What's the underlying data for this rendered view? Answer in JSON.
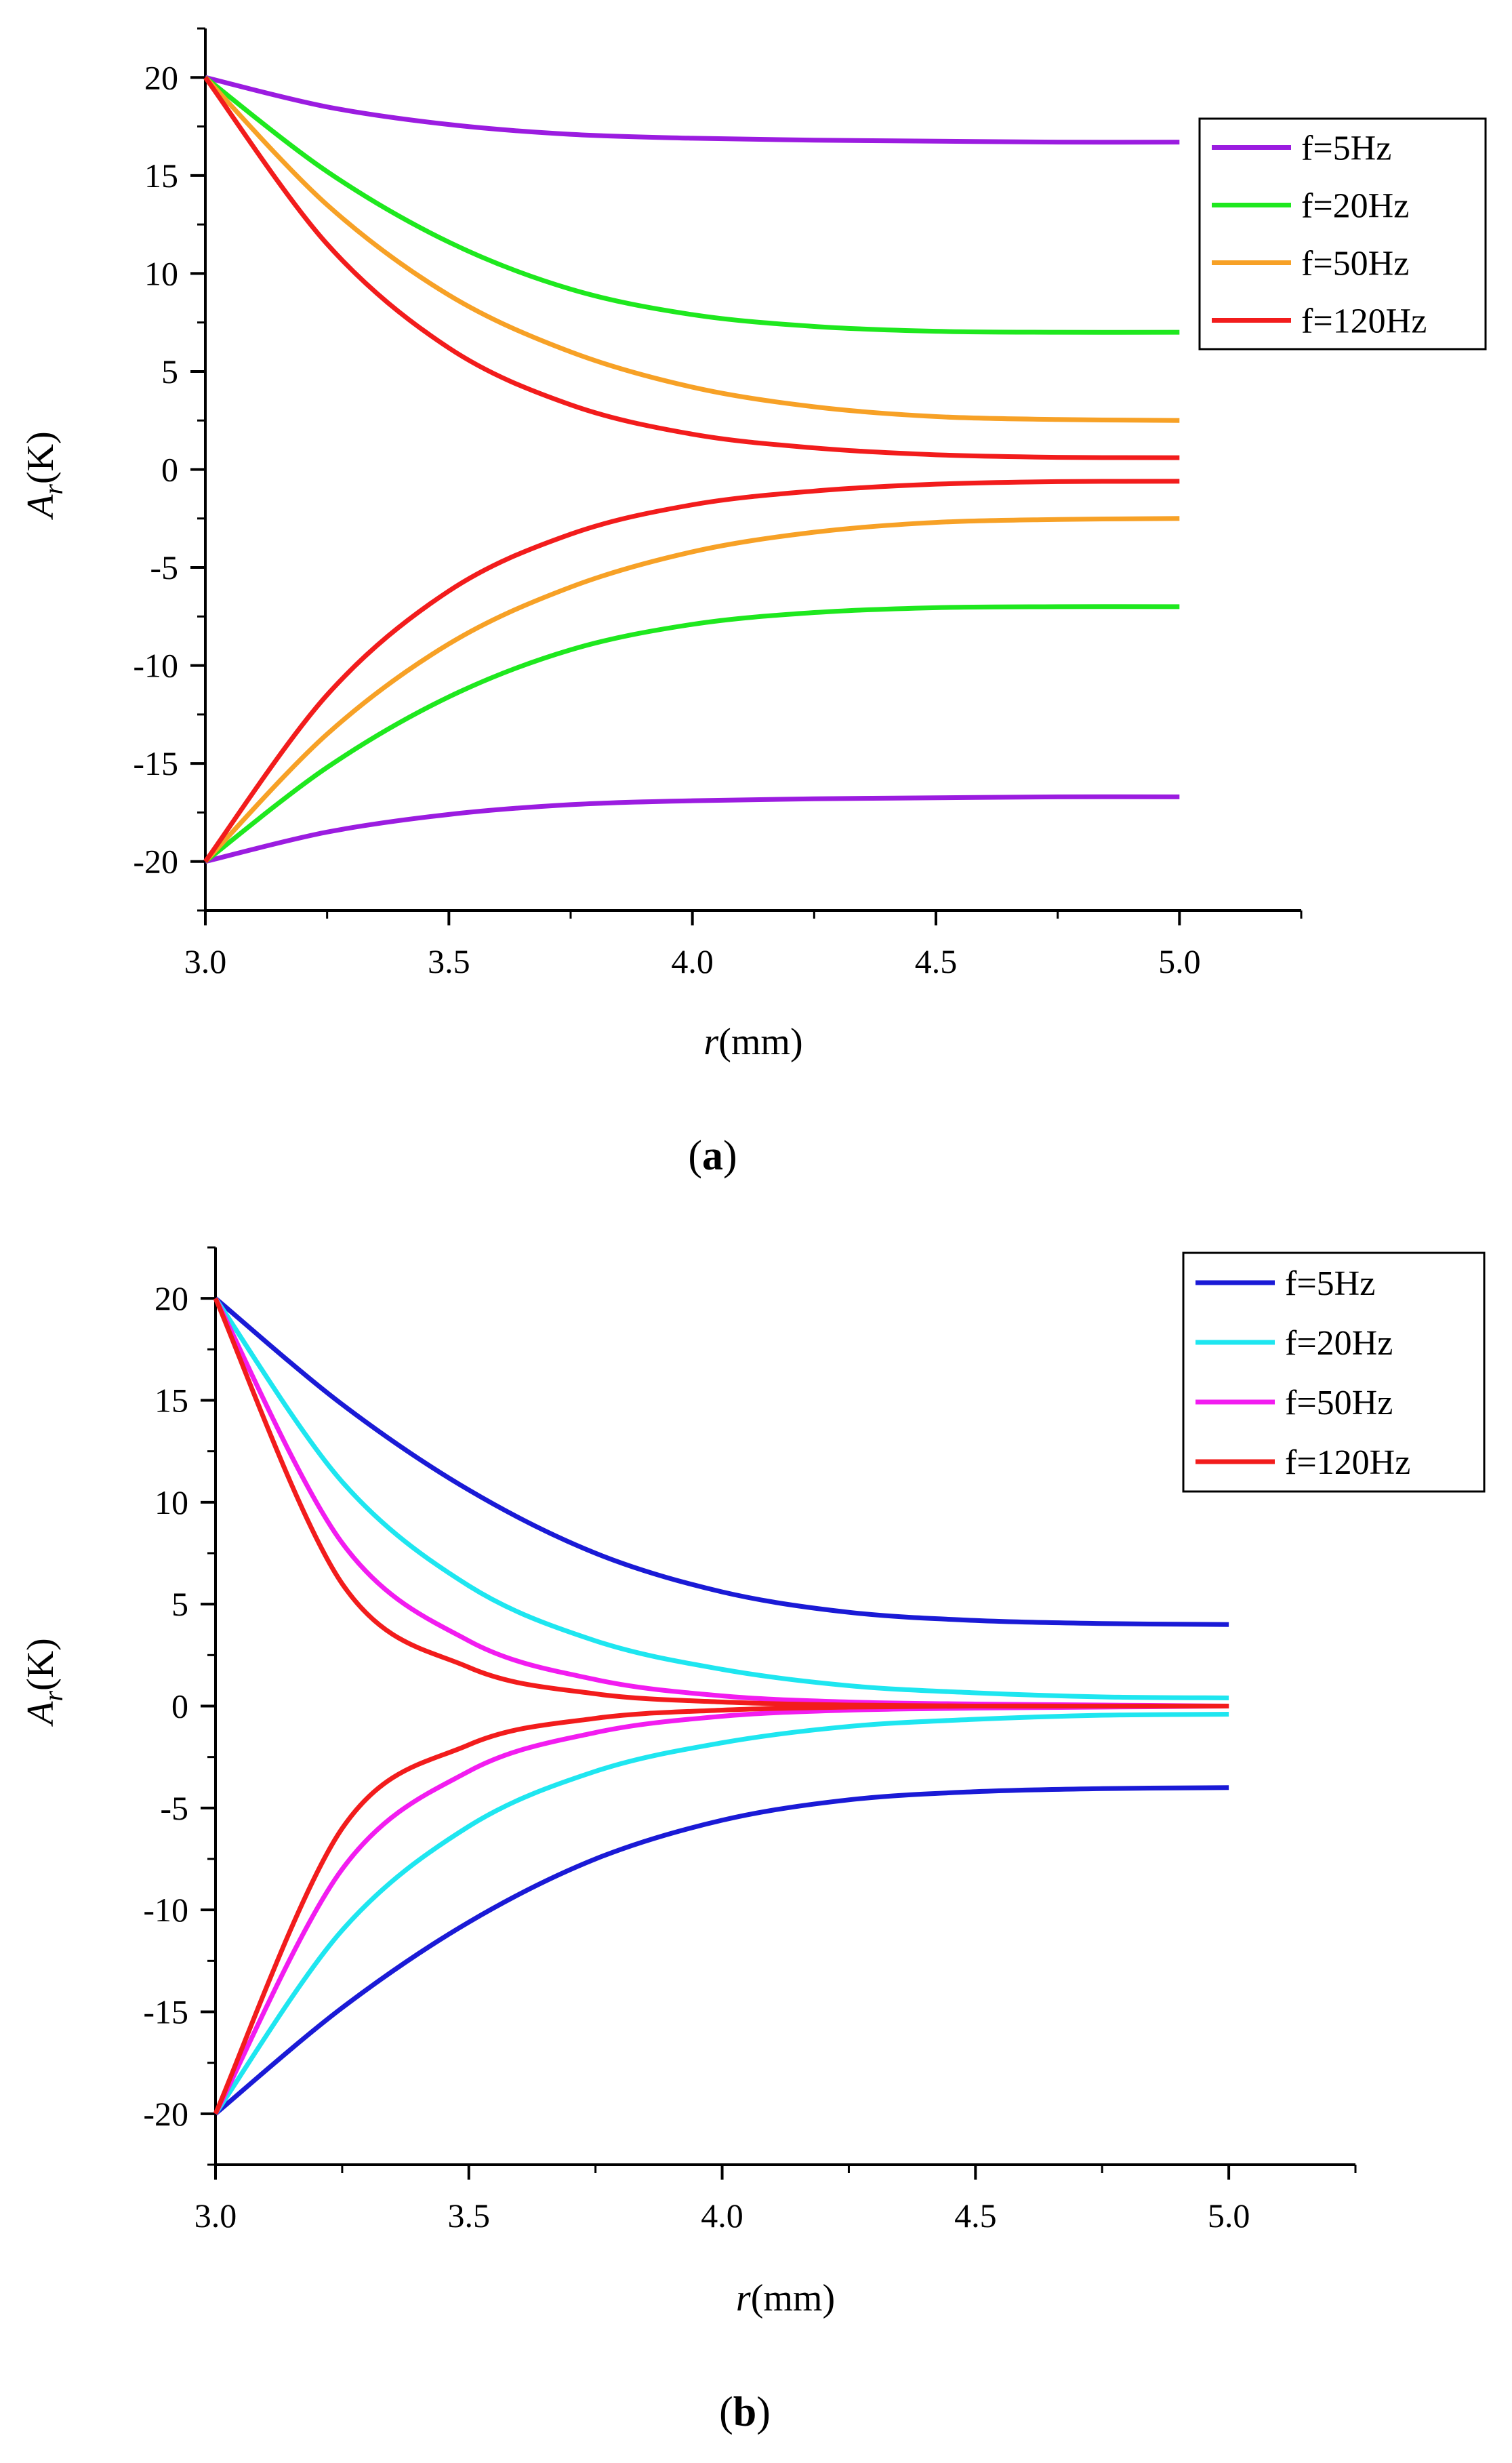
{
  "chart_data": [
    {
      "type": "line",
      "caption": "a",
      "xlabel_var": "r",
      "xlabel_unit": "(mm)",
      "ylabel_var": "A",
      "ylabel_sub": "r",
      "ylabel_unit": "(K)",
      "xlim": [
        3.0,
        5.25
      ],
      "ylim": [
        -22.5,
        22.5
      ],
      "xticks": [
        "3.0",
        "3.5",
        "4.0",
        "4.5",
        "5.0"
      ],
      "yticks": [
        "20",
        "15",
        "10",
        "5",
        "0",
        "-5",
        "-10",
        "-15",
        "-20"
      ],
      "legend_position": "top-right",
      "series": [
        {
          "name": "f=5Hz",
          "color": "#9b1ce0",
          "x": [
            3.0,
            3.25,
            3.5,
            3.75,
            4.0,
            4.25,
            4.5,
            4.75,
            5.0
          ],
          "upper": [
            20,
            18.5,
            17.6,
            17.1,
            16.9,
            16.8,
            16.75,
            16.7,
            16.7
          ],
          "lower": [
            -20,
            -18.5,
            -17.6,
            -17.1,
            -16.9,
            -16.8,
            -16.75,
            -16.7,
            -16.7
          ]
        },
        {
          "name": "f=20Hz",
          "color": "#1ee81e",
          "x": [
            3.0,
            3.25,
            3.5,
            3.75,
            4.0,
            4.25,
            4.5,
            4.75,
            5.0
          ],
          "upper": [
            20,
            15.2,
            11.6,
            9.2,
            7.9,
            7.3,
            7.05,
            7.0,
            7.0
          ],
          "lower": [
            -20,
            -15.2,
            -11.6,
            -9.2,
            -7.9,
            -7.3,
            -7.05,
            -7.0,
            -7.0
          ]
        },
        {
          "name": "f=50Hz",
          "color": "#f7a126",
          "x": [
            3.0,
            3.25,
            3.5,
            3.75,
            4.0,
            4.25,
            4.5,
            4.75,
            5.0
          ],
          "upper": [
            20,
            13.5,
            8.9,
            6.0,
            4.2,
            3.2,
            2.7,
            2.55,
            2.5
          ],
          "lower": [
            -20,
            -13.5,
            -8.9,
            -6.0,
            -4.2,
            -3.2,
            -2.7,
            -2.55,
            -2.5
          ]
        },
        {
          "name": "f=120Hz",
          "color": "#f21c1c",
          "x": [
            3.0,
            3.25,
            3.5,
            3.75,
            4.0,
            4.25,
            4.5,
            4.75,
            5.0
          ],
          "upper": [
            20,
            11.5,
            6.2,
            3.3,
            1.8,
            1.1,
            0.75,
            0.62,
            0.6
          ],
          "lower": [
            -20,
            -11.5,
            -6.2,
            -3.3,
            -1.8,
            -1.1,
            -0.75,
            -0.62,
            -0.6
          ]
        }
      ]
    },
    {
      "type": "line",
      "caption": "b",
      "xlabel_var": "r",
      "xlabel_unit": "(mm)",
      "ylabel_var": "A",
      "ylabel_sub": "r",
      "ylabel_unit": "(K)",
      "xlim": [
        3.0,
        5.25
      ],
      "ylim": [
        -22.5,
        22.5
      ],
      "xticks": [
        "3.0",
        "3.5",
        "4.0",
        "4.5",
        "5.0"
      ],
      "yticks": [
        "20",
        "15",
        "10",
        "5",
        "0",
        "-5",
        "-10",
        "-15",
        "-20"
      ],
      "legend_position": "top-right",
      "series": [
        {
          "name": "f=5Hz",
          "color": "#1a1ad6",
          "x": [
            3.0,
            3.25,
            3.5,
            3.75,
            4.0,
            4.25,
            4.5,
            4.75,
            5.0
          ],
          "upper": [
            20,
            14.8,
            10.6,
            7.5,
            5.6,
            4.6,
            4.2,
            4.05,
            4.0
          ],
          "lower": [
            -20,
            -14.8,
            -10.6,
            -7.5,
            -5.6,
            -4.6,
            -4.2,
            -4.05,
            -4.0
          ]
        },
        {
          "name": "f=20Hz",
          "color": "#1ee6f0",
          "x": [
            3.0,
            3.25,
            3.5,
            3.75,
            4.0,
            4.25,
            4.5,
            4.75,
            5.0
          ],
          "upper": [
            20,
            11.0,
            5.9,
            3.2,
            1.8,
            1.0,
            0.65,
            0.45,
            0.4
          ],
          "lower": [
            -20,
            -11.0,
            -5.9,
            -3.2,
            -1.8,
            -1.0,
            -0.65,
            -0.45,
            -0.4
          ]
        },
        {
          "name": "f=50Hz",
          "color": "#f21cf0",
          "x": [
            3.0,
            3.25,
            3.5,
            3.75,
            4.0,
            4.25,
            4.5,
            4.75,
            5.0
          ],
          "upper": [
            20,
            8.0,
            3.2,
            1.3,
            0.5,
            0.2,
            0.1,
            0.05,
            0.0
          ],
          "lower": [
            -20,
            -8.0,
            -3.2,
            -1.3,
            -0.5,
            -0.2,
            -0.1,
            -0.05,
            0.0
          ]
        },
        {
          "name": "f=120Hz",
          "color": "#f21c1c",
          "x": [
            3.0,
            3.25,
            3.5,
            3.75,
            4.0,
            4.25,
            4.5,
            4.75,
            5.0
          ],
          "upper": [
            20,
            6.0,
            1.9,
            0.6,
            0.2,
            0.05,
            0.0,
            0.0,
            0.0
          ],
          "lower": [
            -20,
            -6.0,
            -1.9,
            -0.6,
            -0.2,
            -0.05,
            0.0,
            0.0,
            0.0
          ]
        }
      ]
    }
  ]
}
